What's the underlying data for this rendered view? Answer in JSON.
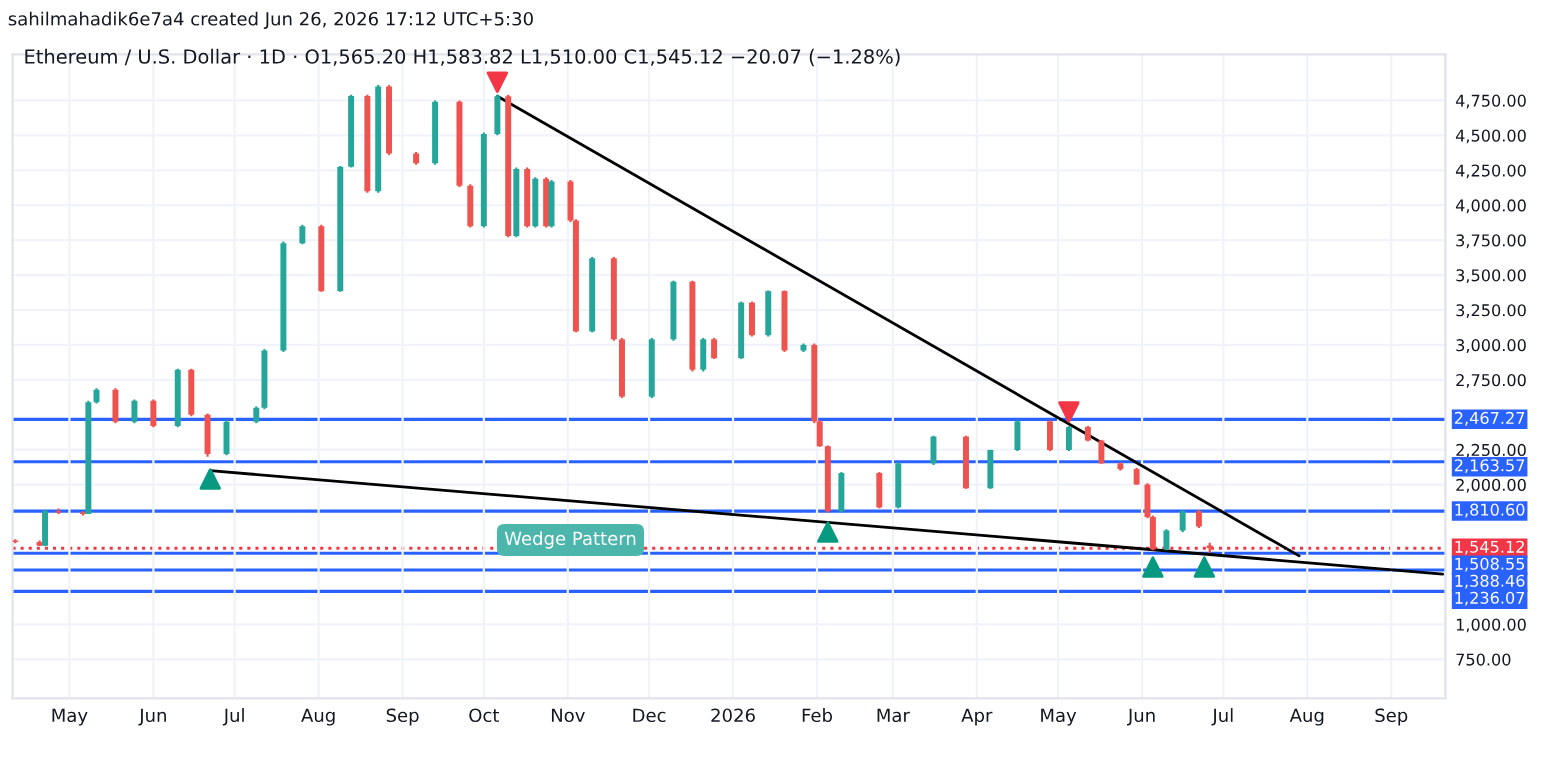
{
  "chart_data": {
    "type": "candlestick",
    "title": "Ethereum / U.S. Dollar · 1D · O1,565.20 H1,583.82 L1,510.00 C1,545.12 −20.07 (−1.28%)",
    "subtitle": "sahilmahadik6e7a4 created Jun 26, 2026 17:12 UTC+5:30",
    "x": [
      "2025-04-11",
      "2025-04-20",
      "2025-04-22",
      "2025-04-27",
      "2025-05-06",
      "2025-05-08",
      "2025-05-11",
      "2025-05-18",
      "2025-05-25",
      "2025-06-01",
      "2025-06-10",
      "2025-06-15",
      "2025-06-21",
      "2025-06-28",
      "2025-07-09",
      "2025-07-12",
      "2025-07-19",
      "2025-07-26",
      "2025-08-02",
      "2025-08-09",
      "2025-08-13",
      "2025-08-19",
      "2025-08-23",
      "2025-08-27",
      "2025-09-06",
      "2025-09-13",
      "2025-09-22",
      "2025-09-26",
      "2025-10-01",
      "2025-10-06",
      "2025-10-10",
      "2025-10-13",
      "2025-10-17",
      "2025-10-20",
      "2025-10-24",
      "2025-10-26",
      "2025-11-02",
      "2025-11-04",
      "2025-11-10",
      "2025-11-18",
      "2025-11-21",
      "2025-12-02",
      "2025-12-10",
      "2025-12-17",
      "2025-12-21",
      "2025-12-25",
      "2026-01-04",
      "2026-01-08",
      "2026-01-14",
      "2026-01-20",
      "2026-01-27",
      "2026-01-31",
      "2026-02-02",
      "2026-02-05",
      "2026-02-10",
      "2026-02-24",
      "2026-03-03",
      "2026-03-16",
      "2026-03-28",
      "2026-04-06",
      "2026-04-16",
      "2026-04-28",
      "2026-05-05",
      "2026-05-12",
      "2026-05-17",
      "2026-05-24",
      "2026-05-30",
      "2026-06-03",
      "2026-06-05",
      "2026-06-10",
      "2026-06-16",
      "2026-06-22",
      "2026-06-26"
    ],
    "ohlc": [
      [
        1600,
        1610,
        1580,
        1590
      ],
      [
        1590,
        1600,
        1560,
        1563
      ],
      [
        1563,
        1820,
        1560,
        1810
      ],
      [
        1810,
        1830,
        1790,
        1800
      ],
      [
        1800,
        1810,
        1780,
        1790
      ],
      [
        1790,
        2600,
        1790,
        2590
      ],
      [
        2590,
        2690,
        2580,
        2680
      ],
      [
        2680,
        2690,
        2440,
        2450
      ],
      [
        2450,
        2610,
        2440,
        2600
      ],
      [
        2600,
        2610,
        2410,
        2420
      ],
      [
        2420,
        2830,
        2410,
        2823
      ],
      [
        2823,
        2830,
        2490,
        2500
      ],
      [
        2500,
        2510,
        2200,
        2220
      ],
      [
        2220,
        2460,
        2210,
        2450
      ],
      [
        2450,
        2560,
        2440,
        2550
      ],
      [
        2550,
        2970,
        2540,
        2960
      ],
      [
        2960,
        3740,
        2950,
        3727
      ],
      [
        3727,
        3860,
        3720,
        3850
      ],
      [
        3850,
        3860,
        3380,
        3385
      ],
      [
        3385,
        4280,
        3380,
        4275
      ],
      [
        4275,
        4790,
        4270,
        4782
      ],
      [
        4782,
        4790,
        4090,
        4100
      ],
      [
        4100,
        4860,
        4090,
        4850
      ],
      [
        4850,
        4860,
        4360,
        4370
      ],
      [
        4370,
        4380,
        4290,
        4300
      ],
      [
        4300,
        4750,
        4290,
        4740
      ],
      [
        4740,
        4750,
        4130,
        4140
      ],
      [
        4140,
        4150,
        3840,
        3850
      ],
      [
        3850,
        4520,
        3840,
        4510
      ],
      [
        4510,
        4790,
        4500,
        4780
      ],
      [
        4780,
        4790,
        3770,
        3780
      ],
      [
        3780,
        4270,
        3770,
        4260
      ],
      [
        4260,
        4270,
        3840,
        3850
      ],
      [
        3850,
        4200,
        3840,
        4190
      ],
      [
        4190,
        4200,
        3840,
        3850
      ],
      [
        3850,
        4180,
        3840,
        4170
      ],
      [
        4170,
        4180,
        3880,
        3890
      ],
      [
        3890,
        3900,
        3090,
        3097
      ],
      [
        3097,
        3630,
        3090,
        3620
      ],
      [
        3620,
        3630,
        3030,
        3040
      ],
      [
        3040,
        3050,
        2620,
        2630
      ],
      [
        2630,
        3050,
        2620,
        3040
      ],
      [
        3040,
        3460,
        3030,
        3453
      ],
      [
        3453,
        3460,
        2810,
        2823
      ],
      [
        2823,
        3050,
        2810,
        3040
      ],
      [
        3040,
        3050,
        2900,
        2905
      ],
      [
        2905,
        3310,
        2900,
        3303
      ],
      [
        3303,
        3310,
        3060,
        3070
      ],
      [
        3070,
        3390,
        3060,
        3385
      ],
      [
        3385,
        3390,
        2950,
        2960
      ],
      [
        2960,
        3010,
        2950,
        3000
      ],
      [
        3000,
        3010,
        2440,
        2453
      ],
      [
        2453,
        2460,
        2270,
        2275
      ],
      [
        2275,
        2280,
        1800,
        1810
      ],
      [
        1810,
        2090,
        1800,
        2083
      ],
      [
        2083,
        2090,
        1830,
        1837
      ],
      [
        1837,
        2160,
        1830,
        2152
      ],
      [
        2152,
        2350,
        2140,
        2344
      ],
      [
        2344,
        2350,
        1970,
        1974
      ],
      [
        1974,
        2250,
        1970,
        2248
      ],
      [
        2248,
        2460,
        2240,
        2453
      ],
      [
        2453,
        2460,
        2240,
        2248
      ],
      [
        2248,
        2420,
        2240,
        2412
      ],
      [
        2412,
        2420,
        2310,
        2316
      ],
      [
        2316,
        2320,
        2150,
        2152
      ],
      [
        2152,
        2160,
        2100,
        2111
      ],
      [
        2111,
        2120,
        2000,
        2001
      ],
      [
        2001,
        2010,
        1760,
        1768
      ],
      [
        1768,
        1780,
        1530,
        1535
      ],
      [
        1535,
        1680,
        1530,
        1672
      ],
      [
        1672,
        1820,
        1660,
        1810
      ],
      [
        1810,
        1820,
        1690,
        1700
      ],
      [
        1565.2,
        1583.82,
        1510.0,
        1545.12
      ]
    ],
    "series": [
      {
        "type": "line",
        "color": "#000000",
        "x": [
          "2025-10-06",
          "2026-07-29"
        ],
        "values": [
          4780,
          1490
        ]
      },
      {
        "type": "line",
        "color": "#000000",
        "x": [
          "2025-06-22",
          "2026-09-20"
        ],
        "values": [
          2100,
          1360
        ]
      },
      {
        "type": "scatter",
        "marker": "triangle",
        "color": "#089981",
        "x": [
          "2025-06-22",
          "2026-02-05",
          "2026-06-05",
          "2026-06-24"
        ],
        "values": [
          2040,
          1660,
          1410,
          1410
        ]
      },
      {
        "type": "scatter",
        "marker": "triangle_down",
        "color": "#f23645",
        "x": [
          "2025-10-06",
          "2026-05-05"
        ],
        "values": [
          4880,
          2520
        ]
      }
    ],
    "ref_lines": [
      {
        "axis": "y",
        "value": 2467.27,
        "label": "2,467.27",
        "color": "#2962ff"
      },
      {
        "axis": "y",
        "value": 2163.57,
        "label": "2,163.57",
        "color": "#2962ff"
      },
      {
        "axis": "y",
        "value": 1810.6,
        "label": "1,810.60",
        "color": "#2962ff"
      },
      {
        "axis": "y",
        "value": 1545.12,
        "label": "1,545.12",
        "color": "#f23645",
        "line_style": "dotted"
      },
      {
        "axis": "y",
        "value": 1508.55,
        "label": "1,508.55",
        "color": "#2962ff"
      },
      {
        "axis": "y",
        "value": 1388.46,
        "label": "1,388.46",
        "color": "#2962ff"
      },
      {
        "axis": "y",
        "value": 1236.07,
        "label": "1,236.07",
        "color": "#2962ff"
      }
    ],
    "annotations": [
      {
        "text": "Wedge Pattern",
        "x": "2025-11-02",
        "y": 1604
      }
    ],
    "xlim": [
      "2025-04-10",
      "2026-09-21"
    ],
    "xticks": [
      {
        "value": "2025-05-01",
        "label": "May"
      },
      {
        "value": "2025-06-01",
        "label": "Jun"
      },
      {
        "value": "2025-07-01",
        "label": "Jul"
      },
      {
        "value": "2025-08-01",
        "label": "Aug"
      },
      {
        "value": "2025-09-01",
        "label": "Sep"
      },
      {
        "value": "2025-10-01",
        "label": "Oct"
      },
      {
        "value": "2025-11-01",
        "label": "Nov"
      },
      {
        "value": "2025-12-01",
        "label": "Dec"
      },
      {
        "value": "2026-01-01",
        "label": "2026"
      },
      {
        "value": "2026-02-01",
        "label": "Feb"
      },
      {
        "value": "2026-03-01",
        "label": "Mar"
      },
      {
        "value": "2026-04-01",
        "label": "Apr"
      },
      {
        "value": "2026-05-01",
        "label": "May"
      },
      {
        "value": "2026-06-01",
        "label": "Jun"
      },
      {
        "value": "2026-07-01",
        "label": "Jul"
      },
      {
        "value": "2026-08-01",
        "label": "Aug"
      },
      {
        "value": "2026-09-01",
        "label": "Sep"
      }
    ],
    "ylim": [
      470,
      5080
    ],
    "yticks": [
      {
        "value": 750,
        "label": "750.00"
      },
      {
        "value": 1000,
        "label": "1,000.00"
      },
      {
        "value": 2000,
        "label": "2,000.00"
      },
      {
        "value": 2250,
        "label": "2,250.00"
      },
      {
        "value": 2750,
        "label": "2,750.00"
      },
      {
        "value": 3000,
        "label": "3,000.00"
      },
      {
        "value": 3250,
        "label": "3,250.00"
      },
      {
        "value": 3500,
        "label": "3,500.00"
      },
      {
        "value": 3750,
        "label": "3,750.00"
      },
      {
        "value": 4000,
        "label": "4,000.00"
      },
      {
        "value": 4250,
        "label": "4,250.00"
      },
      {
        "value": 4500,
        "label": "4,500.00"
      },
      {
        "value": 4750,
        "label": "4,750.00"
      }
    ],
    "grid": true,
    "legend": false
  }
}
